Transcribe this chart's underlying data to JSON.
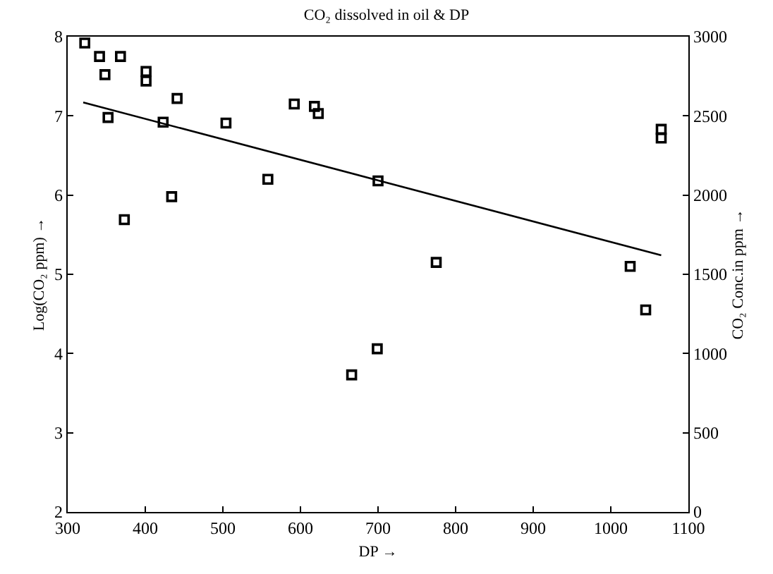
{
  "chart_data": {
    "type": "scatter",
    "title": "CO₂ dissolved in oil & DP",
    "xlabel": "DP →",
    "ylabel": "Log(CO₂ ppm) →",
    "y2label": "CO₂ Conc.in ppm →",
    "xlim": [
      300,
      1100
    ],
    "xticks": [
      300,
      400,
      500,
      600,
      700,
      800,
      900,
      1000,
      1100
    ],
    "ylim": [
      2,
      8
    ],
    "yticks": [
      2,
      3,
      4,
      5,
      6,
      7,
      8
    ],
    "y2lim": [
      0,
      3000
    ],
    "y2ticks": [
      0,
      500,
      1000,
      1500,
      2000,
      2500,
      3000
    ],
    "series": [
      {
        "color": "#000000",
        "marker": "square",
        "x": [
          322,
          341,
          368,
          348,
          401,
          401,
          352,
          373,
          441,
          423,
          434,
          504,
          558,
          592,
          618,
          623,
          700,
          699,
          666,
          775,
          1025,
          1045,
          1065,
          1065
        ],
        "values": [
          7.92,
          7.75,
          7.75,
          7.52,
          7.56,
          7.44,
          6.98,
          5.69,
          7.22,
          6.92,
          5.98,
          6.91,
          6.2,
          7.15,
          7.12,
          7.03,
          6.18,
          4.06,
          3.73,
          5.15,
          5.1,
          4.55,
          6.83,
          6.72
        ]
      },
      {
        "type": "line",
        "color": "#000000",
        "marker": "none",
        "line_style": "solid",
        "x": [
          320,
          1065
        ],
        "values": [
          7.17,
          5.24
        ]
      }
    ]
  }
}
